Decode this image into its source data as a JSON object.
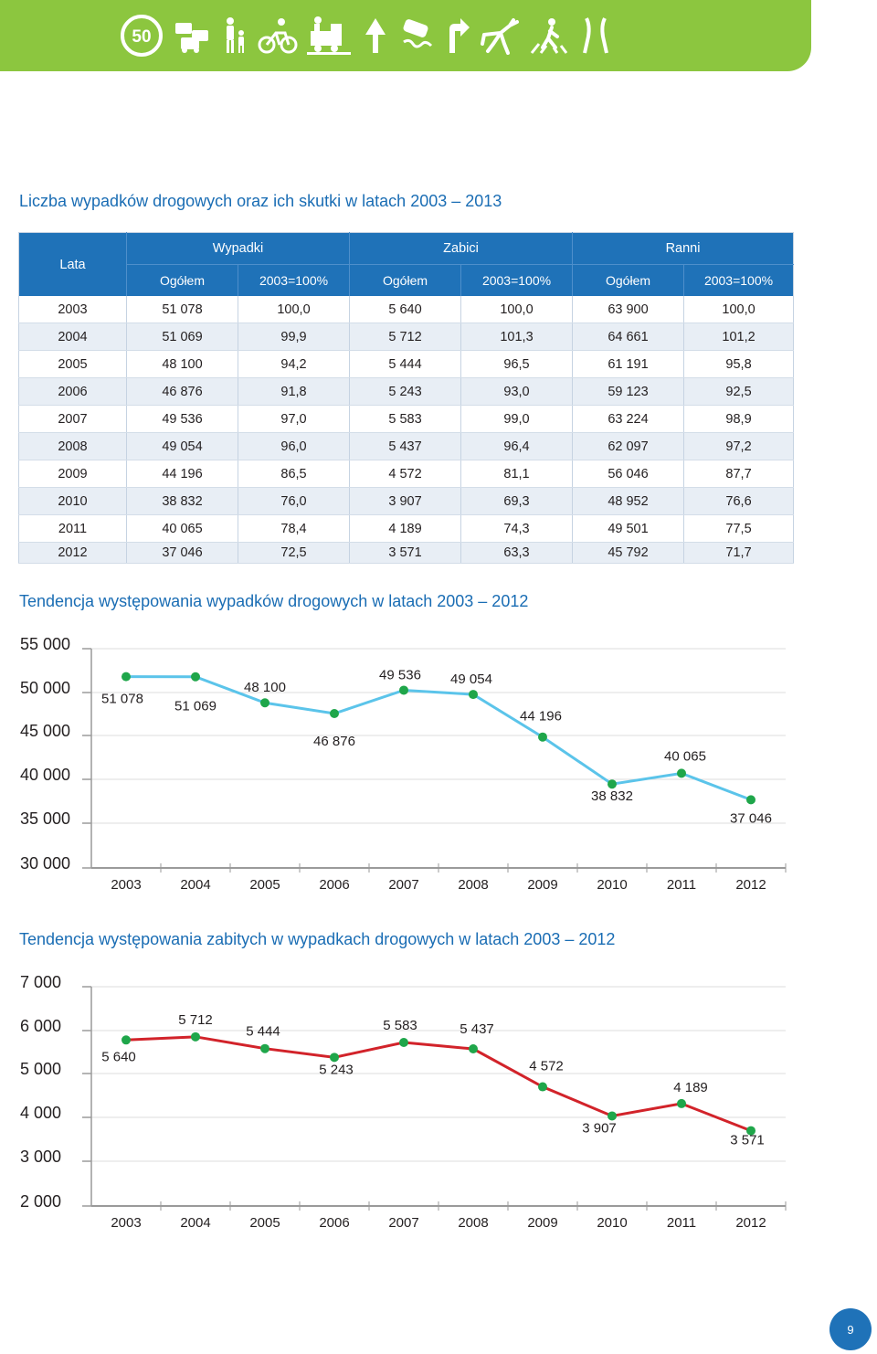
{
  "header": {
    "speed_sign": "50",
    "icons": [
      "speed-limit-50-icon",
      "traffic-jam-icon",
      "pedestrians-icon",
      "cyclist-icon",
      "train-crossing-icon",
      "road-narrowing-icon",
      "skidding-car-icon",
      "sharp-turn-icon",
      "wild-animals-icon",
      "pedestrian-crossing-icon",
      "road-curves-icon"
    ]
  },
  "table": {
    "title": "Liczba wypadków drogowych oraz ich skutki w latach 2003 – 2013",
    "col_lata": "Lata",
    "groups": [
      "Wypadki",
      "Zabici",
      "Ranni"
    ],
    "sub": [
      "Ogółem",
      "2003=100%",
      "Ogółem",
      "2003=100%",
      "Ogółem",
      "2003=100%"
    ],
    "rows": [
      [
        "2003",
        "51 078",
        "100,0",
        "5 640",
        "100,0",
        "63 900",
        "100,0"
      ],
      [
        "2004",
        "51 069",
        "99,9",
        "5 712",
        "101,3",
        "64 661",
        "101,2"
      ],
      [
        "2005",
        "48 100",
        "94,2",
        "5 444",
        "96,5",
        "61 191",
        "95,8"
      ],
      [
        "2006",
        "46 876",
        "91,8",
        "5 243",
        "93,0",
        "59 123",
        "92,5"
      ],
      [
        "2007",
        "49 536",
        "97,0",
        "5 583",
        "99,0",
        "63 224",
        "98,9"
      ],
      [
        "2008",
        "49 054",
        "96,0",
        "5 437",
        "96,4",
        "62 097",
        "97,2"
      ],
      [
        "2009",
        "44 196",
        "86,5",
        "4 572",
        "81,1",
        "56 046",
        "87,7"
      ],
      [
        "2010",
        "38 832",
        "76,0",
        "3 907",
        "69,3",
        "48 952",
        "76,6"
      ],
      [
        "2011",
        "40 065",
        "78,4",
        "4 189",
        "74,3",
        "49 501",
        "77,5"
      ],
      [
        "2012",
        "37 046",
        "72,5",
        "3 571",
        "63,3",
        "45 792",
        "71,7"
      ]
    ]
  },
  "chart_data": [
    {
      "type": "line",
      "title": "Tendencja występowania wypadków drogowych w latach 2003 – 2012",
      "categories": [
        "2003",
        "2004",
        "2005",
        "2006",
        "2007",
        "2008",
        "2009",
        "2010",
        "2011",
        "2012"
      ],
      "values": [
        51078,
        51069,
        48100,
        46876,
        49536,
        49054,
        44196,
        38832,
        40065,
        37046
      ],
      "labels": [
        "51 078",
        "51 069",
        "48 100",
        "46 876",
        "49 536",
        "49 054",
        "44 196",
        "38 832",
        "40 065",
        "37 046"
      ],
      "yticks": [
        "55 000",
        "50 000",
        "45 000",
        "40 000",
        "35 000",
        "30 000"
      ],
      "line_color": "#5bc4ea",
      "marker_color": "#1fa64a"
    },
    {
      "type": "line",
      "title": "Tendencja występowania zabitych w wypadkach drogowych w latach 2003 – 2012",
      "categories": [
        "2003",
        "2004",
        "2005",
        "2006",
        "2007",
        "2008",
        "2009",
        "2010",
        "2011",
        "2012"
      ],
      "values": [
        5640,
        5712,
        5444,
        5243,
        5583,
        5437,
        4572,
        3907,
        4189,
        3571
      ],
      "labels": [
        "5 640",
        "5 712",
        "5 444",
        "5 243",
        "5 583",
        "5 437",
        "4 572",
        "3 907",
        "4 189",
        "3 571"
      ],
      "yticks": [
        "7 000",
        "6 000",
        "5 000",
        "4 000",
        "3 000",
        "2 000"
      ],
      "line_color": "#d2232a",
      "marker_color": "#1fa64a"
    }
  ],
  "page_number": "9"
}
